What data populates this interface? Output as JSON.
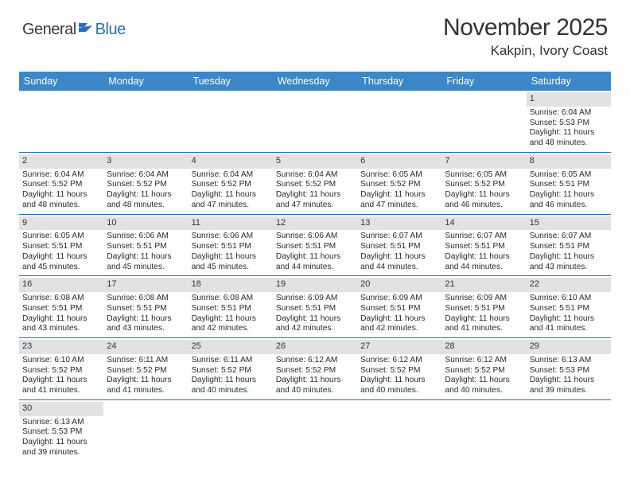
{
  "logo": {
    "part1": "General",
    "part2": "Blue"
  },
  "title": "November 2025",
  "location": "Kakpin, Ivory Coast",
  "colors": {
    "header_bg": "#3b87c8",
    "header_text": "#ffffff",
    "divider": "#2a6db8",
    "daynum_bg": "#e2e2e2",
    "logo_blue": "#2a6db8",
    "logo_gray": "#3a3a3a",
    "body_text": "#2a2a2a",
    "page_bg": "#ffffff"
  },
  "day_names": [
    "Sunday",
    "Monday",
    "Tuesday",
    "Wednesday",
    "Thursday",
    "Friday",
    "Saturday"
  ],
  "weeks": [
    [
      null,
      null,
      null,
      null,
      null,
      null,
      {
        "n": "1",
        "sr": "6:04 AM",
        "ss": "5:53 PM",
        "dl": "11 hours and 48 minutes."
      }
    ],
    [
      {
        "n": "2",
        "sr": "6:04 AM",
        "ss": "5:52 PM",
        "dl": "11 hours and 48 minutes."
      },
      {
        "n": "3",
        "sr": "6:04 AM",
        "ss": "5:52 PM",
        "dl": "11 hours and 48 minutes."
      },
      {
        "n": "4",
        "sr": "6:04 AM",
        "ss": "5:52 PM",
        "dl": "11 hours and 47 minutes."
      },
      {
        "n": "5",
        "sr": "6:04 AM",
        "ss": "5:52 PM",
        "dl": "11 hours and 47 minutes."
      },
      {
        "n": "6",
        "sr": "6:05 AM",
        "ss": "5:52 PM",
        "dl": "11 hours and 47 minutes."
      },
      {
        "n": "7",
        "sr": "6:05 AM",
        "ss": "5:52 PM",
        "dl": "11 hours and 46 minutes."
      },
      {
        "n": "8",
        "sr": "6:05 AM",
        "ss": "5:51 PM",
        "dl": "11 hours and 46 minutes."
      }
    ],
    [
      {
        "n": "9",
        "sr": "6:05 AM",
        "ss": "5:51 PM",
        "dl": "11 hours and 45 minutes."
      },
      {
        "n": "10",
        "sr": "6:06 AM",
        "ss": "5:51 PM",
        "dl": "11 hours and 45 minutes."
      },
      {
        "n": "11",
        "sr": "6:06 AM",
        "ss": "5:51 PM",
        "dl": "11 hours and 45 minutes."
      },
      {
        "n": "12",
        "sr": "6:06 AM",
        "ss": "5:51 PM",
        "dl": "11 hours and 44 minutes."
      },
      {
        "n": "13",
        "sr": "6:07 AM",
        "ss": "5:51 PM",
        "dl": "11 hours and 44 minutes."
      },
      {
        "n": "14",
        "sr": "6:07 AM",
        "ss": "5:51 PM",
        "dl": "11 hours and 44 minutes."
      },
      {
        "n": "15",
        "sr": "6:07 AM",
        "ss": "5:51 PM",
        "dl": "11 hours and 43 minutes."
      }
    ],
    [
      {
        "n": "16",
        "sr": "6:08 AM",
        "ss": "5:51 PM",
        "dl": "11 hours and 43 minutes."
      },
      {
        "n": "17",
        "sr": "6:08 AM",
        "ss": "5:51 PM",
        "dl": "11 hours and 43 minutes."
      },
      {
        "n": "18",
        "sr": "6:08 AM",
        "ss": "5:51 PM",
        "dl": "11 hours and 42 minutes."
      },
      {
        "n": "19",
        "sr": "6:09 AM",
        "ss": "5:51 PM",
        "dl": "11 hours and 42 minutes."
      },
      {
        "n": "20",
        "sr": "6:09 AM",
        "ss": "5:51 PM",
        "dl": "11 hours and 42 minutes."
      },
      {
        "n": "21",
        "sr": "6:09 AM",
        "ss": "5:51 PM",
        "dl": "11 hours and 41 minutes."
      },
      {
        "n": "22",
        "sr": "6:10 AM",
        "ss": "5:51 PM",
        "dl": "11 hours and 41 minutes."
      }
    ],
    [
      {
        "n": "23",
        "sr": "6:10 AM",
        "ss": "5:52 PM",
        "dl": "11 hours and 41 minutes."
      },
      {
        "n": "24",
        "sr": "6:11 AM",
        "ss": "5:52 PM",
        "dl": "11 hours and 41 minutes."
      },
      {
        "n": "25",
        "sr": "6:11 AM",
        "ss": "5:52 PM",
        "dl": "11 hours and 40 minutes."
      },
      {
        "n": "26",
        "sr": "6:12 AM",
        "ss": "5:52 PM",
        "dl": "11 hours and 40 minutes."
      },
      {
        "n": "27",
        "sr": "6:12 AM",
        "ss": "5:52 PM",
        "dl": "11 hours and 40 minutes."
      },
      {
        "n": "28",
        "sr": "6:12 AM",
        "ss": "5:52 PM",
        "dl": "11 hours and 40 minutes."
      },
      {
        "n": "29",
        "sr": "6:13 AM",
        "ss": "5:53 PM",
        "dl": "11 hours and 39 minutes."
      }
    ],
    [
      {
        "n": "30",
        "sr": "6:13 AM",
        "ss": "5:53 PM",
        "dl": "11 hours and 39 minutes."
      },
      null,
      null,
      null,
      null,
      null,
      null
    ]
  ],
  "labels": {
    "sunrise": "Sunrise:",
    "sunset": "Sunset:",
    "daylight": "Daylight:"
  }
}
